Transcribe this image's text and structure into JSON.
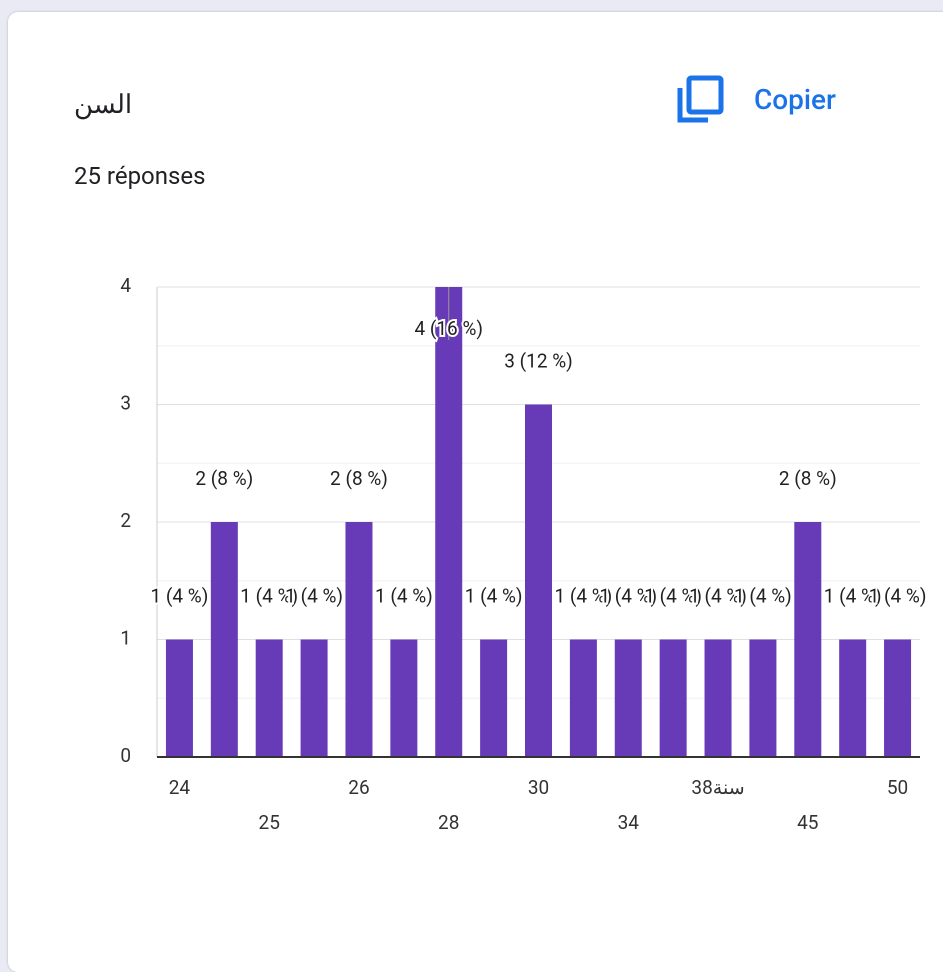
{
  "header": {
    "title": "السن",
    "copy_button": "Copier",
    "responses": "25 réponses"
  },
  "chart_data": {
    "type": "bar",
    "categories": [
      "24",
      null,
      "25",
      null,
      "26",
      null,
      "28",
      null,
      "30",
      null,
      "34",
      null,
      "38سنة",
      null,
      "45",
      null,
      "50"
    ],
    "values": [
      1,
      2,
      1,
      1,
      2,
      1,
      4,
      1,
      3,
      1,
      1,
      1,
      1,
      1,
      2,
      1,
      1
    ],
    "value_labels": [
      "1 (4 %)",
      "2 (8 %)",
      "1 (4 %)",
      "1 (4 %)",
      "2 (8 %)",
      "1 (4 %)",
      "4 (16 %)",
      "1 (4 %)",
      "3 (12 %)",
      "1 (4 %)",
      "1 (4 %)",
      "1 (4 %)",
      "1 (4 %)",
      "1 (4 %)",
      "2 (8 %)",
      "1 (4 %)",
      "1 (4 %)"
    ],
    "color": "#673ab7",
    "ylim": [
      0,
      4
    ],
    "yticks": [
      0,
      1,
      2,
      3,
      4
    ],
    "yminorticks": [
      0.5,
      1.5,
      2.5,
      3.5
    ],
    "grid": true
  }
}
